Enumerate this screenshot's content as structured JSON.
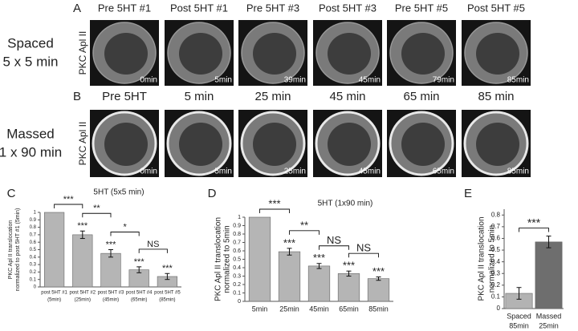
{
  "panel_a": {
    "letter": "A",
    "row_label": [
      "Spaced",
      "5 x 5 min"
    ],
    "stain": "PKC Apl II",
    "titles": [
      "Pre 5HT #1",
      "Post 5HT #1",
      "Pre 5HT #3",
      "Post 5HT #3",
      "Pre 5HT #5",
      "Post 5HT #5"
    ],
    "times": [
      "0min",
      "5min",
      "39min",
      "45min",
      "79min",
      "85min"
    ]
  },
  "panel_b": {
    "letter": "B",
    "row_label": [
      "Massed",
      "1 x 90 min"
    ],
    "stain": "PKC Apl II",
    "titles": [
      "Pre 5HT",
      "5 min",
      "25 min",
      "45 min",
      "65 min",
      "85 min"
    ],
    "times": [
      "0min",
      "5min",
      "25min",
      "45min",
      "65min",
      "85min"
    ]
  },
  "chart_data": [
    {
      "type": "bar",
      "letter": "C",
      "title": "5HT (5x5 min)",
      "ylabel": [
        "PKC Apl II translocation",
        "normalized to post 5HT #1 (5min)"
      ],
      "categories": [
        "post 5HT #1",
        "post 5HT #2",
        "post 5HT #3",
        "post 5HT #4",
        "post 5HT #5"
      ],
      "category_notes": [
        "(5min)",
        "(25min)",
        "(45min)",
        "(65min)",
        "(85min)"
      ],
      "values": [
        1,
        0.7,
        0.45,
        0.23,
        0.14
      ],
      "errors": [
        null,
        0.05,
        0.05,
        0.04,
        0.04
      ],
      "significance": [
        null,
        "***",
        "***",
        "***",
        "***"
      ],
      "comparisons": [
        "***",
        "**",
        "*",
        "NS"
      ],
      "color": "#b5b5b5",
      "ylim": [
        0,
        1
      ],
      "yticks": [
        0,
        0.1,
        0.2,
        0.3,
        0.4,
        0.5,
        0.6,
        0.7,
        0.8,
        0.9,
        1
      ]
    },
    {
      "type": "bar",
      "letter": "D",
      "title": "5HT (1x90 min)",
      "ylabel": [
        "PKC Apl II translocation",
        "normalized to 5min"
      ],
      "categories": [
        "5min",
        "25min",
        "45min",
        "65min",
        "85min"
      ],
      "values": [
        1,
        0.59,
        0.42,
        0.33,
        0.27
      ],
      "errors": [
        null,
        0.04,
        0.03,
        0.03,
        0.02
      ],
      "significance": [
        null,
        "***",
        "***",
        "***",
        "***"
      ],
      "comparisons": [
        "***",
        "**",
        "NS",
        "NS"
      ],
      "color": "#b5b5b5",
      "ylim": [
        0,
        1
      ],
      "yticks": [
        0,
        0.1,
        0.2,
        0.3,
        0.4,
        0.5,
        0.6,
        0.7,
        0.8,
        0.9,
        1
      ]
    },
    {
      "type": "bar",
      "letter": "E",
      "ylabel": [
        "PKC Apl II translocation",
        "normalized to 5min"
      ],
      "categories": [
        "Spaced",
        "Massed"
      ],
      "category_notes": [
        "85min",
        "25min"
      ],
      "values": [
        0.13,
        0.57
      ],
      "errors": [
        0.05,
        0.05
      ],
      "comparisons": [
        "***"
      ],
      "colors": [
        "#b3b3b3",
        "#6e6e6e"
      ],
      "ylim": [
        0,
        0.85
      ],
      "yticks": [
        0,
        0.1,
        0.2,
        0.3,
        0.4,
        0.5,
        0.6,
        0.7,
        0.8
      ]
    }
  ]
}
